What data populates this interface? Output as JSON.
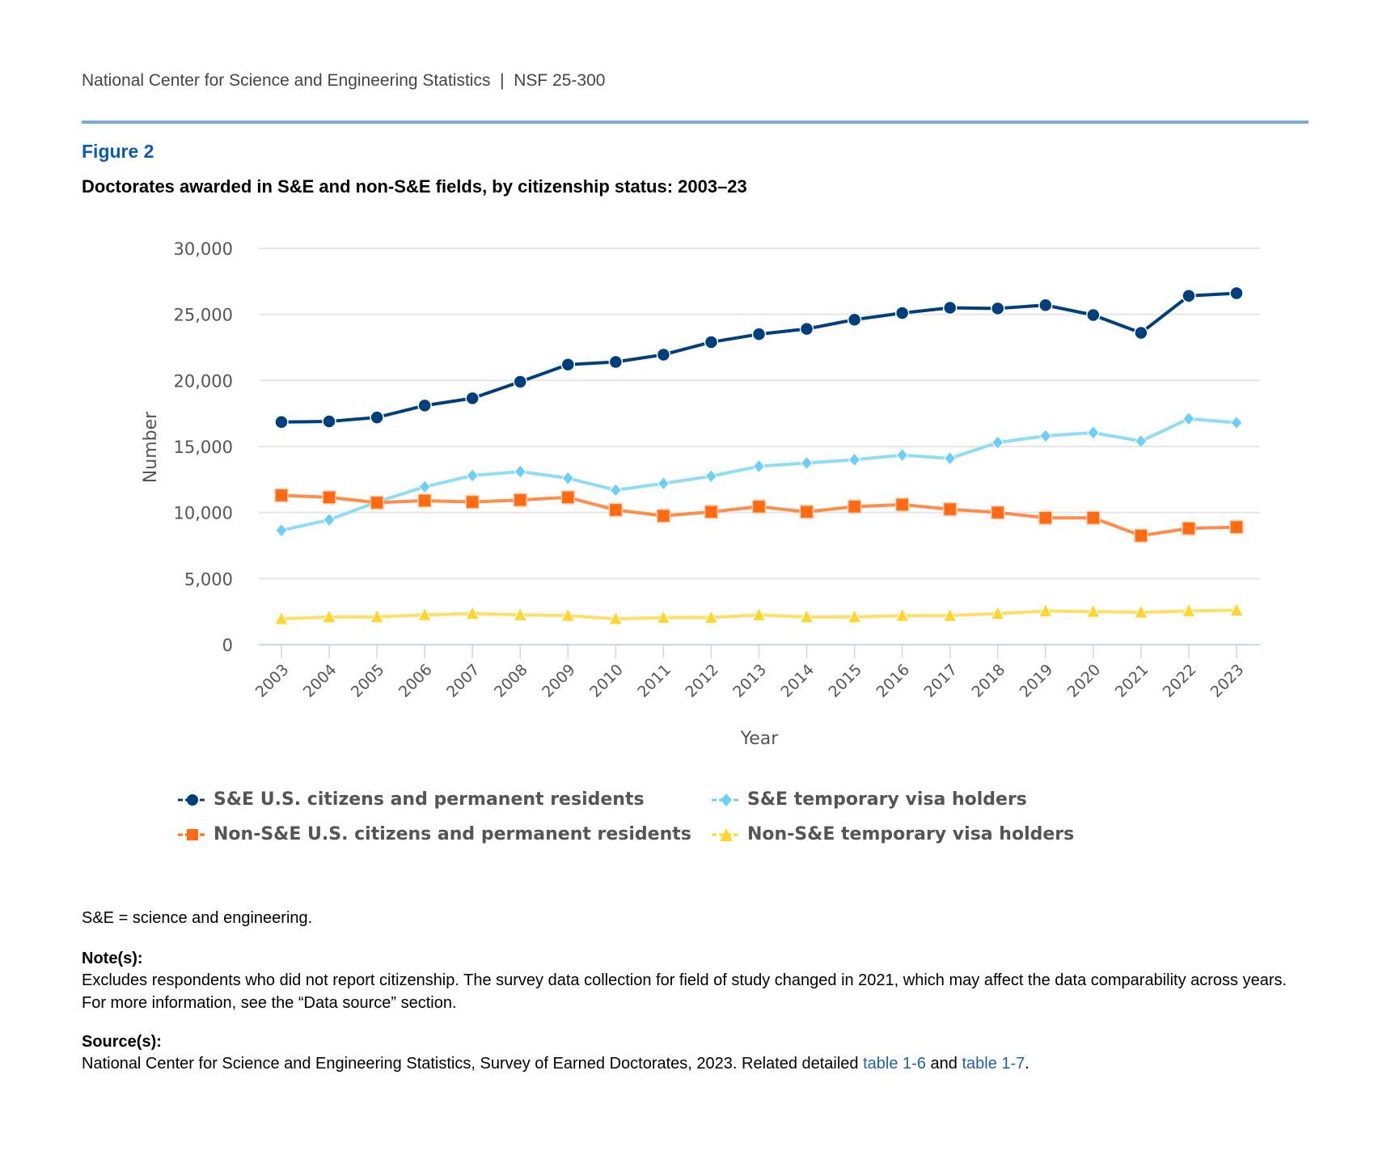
{
  "header": {
    "org": "National Center for Science and Engineering Statistics  |  NSF 25-300"
  },
  "figure": {
    "label": "Figure 2",
    "title": "Doctorates awarded in S&E and non-S&E fields, by citizenship status: 2003–23"
  },
  "chart_data": {
    "type": "line",
    "title": "",
    "xlabel": "Year",
    "ylabel": "Number",
    "ylim": [
      0,
      30000
    ],
    "yticks": [
      0,
      5000,
      10000,
      15000,
      20000,
      25000,
      30000
    ],
    "ytick_labels": [
      "0",
      "5,000",
      "10,000",
      "15,000",
      "20,000",
      "25,000",
      "30,000"
    ],
    "grid": "horizontal",
    "legend": "bottom",
    "x": [
      "2003",
      "2004",
      "2005",
      "2006",
      "2007",
      "2008",
      "2009",
      "2010",
      "2011",
      "2012",
      "2013",
      "2014",
      "2015",
      "2016",
      "2017",
      "2018",
      "2019",
      "2020",
      "2021",
      "2022",
      "2023"
    ],
    "series": [
      {
        "name": "S&E U.S. citizens and permanent residents",
        "color": "#003f7d",
        "marker": "circle",
        "values": [
          16850,
          16900,
          17200,
          18100,
          18650,
          19900,
          21200,
          21400,
          21950,
          22900,
          23500,
          23900,
          24600,
          25100,
          25500,
          25450,
          25700,
          24950,
          23600,
          26400,
          26600
        ]
      },
      {
        "name": "S&E temporary visa holders",
        "color": "#6ccff6",
        "marker": "diamond",
        "values": [
          8650,
          9450,
          10800,
          11950,
          12800,
          13100,
          12600,
          11700,
          12200,
          12750,
          13500,
          13750,
          14000,
          14350,
          14100,
          15300,
          15800,
          16050,
          15400,
          17100,
          16800
        ]
      },
      {
        "name": "Non-S&E U.S. citizens and permanent residents",
        "color": "#ff6a13",
        "marker": "square",
        "values": [
          11300,
          11150,
          10750,
          10900,
          10800,
          10950,
          11150,
          10200,
          9750,
          10050,
          10450,
          10050,
          10450,
          10600,
          10250,
          10000,
          9600,
          9600,
          8250,
          8800,
          8900
        ]
      },
      {
        "name": "Non-S&E temporary visa holders",
        "color": "#ffd530",
        "marker": "triangle",
        "values": [
          1950,
          2100,
          2100,
          2250,
          2350,
          2250,
          2200,
          1950,
          2050,
          2050,
          2250,
          2100,
          2100,
          2200,
          2200,
          2350,
          2550,
          2500,
          2450,
          2550,
          2600
        ]
      }
    ]
  },
  "footer": {
    "abbrev": "S&E = science and engineering.",
    "notes_label": "Note(s):",
    "notes": "Excludes respondents who did not report citizenship. The survey data collection for field of study changed in 2021, which may affect the data comparability across years. For more information, see the “Data source” section.",
    "source_label": "Source(s):",
    "source_text": "National Center for Science and Engineering Statistics, Survey of Earned Doctorates, 2023. Related detailed ",
    "link1": "table 1-6",
    "and": " and ",
    "link2": "table 1-7",
    "end": "."
  }
}
